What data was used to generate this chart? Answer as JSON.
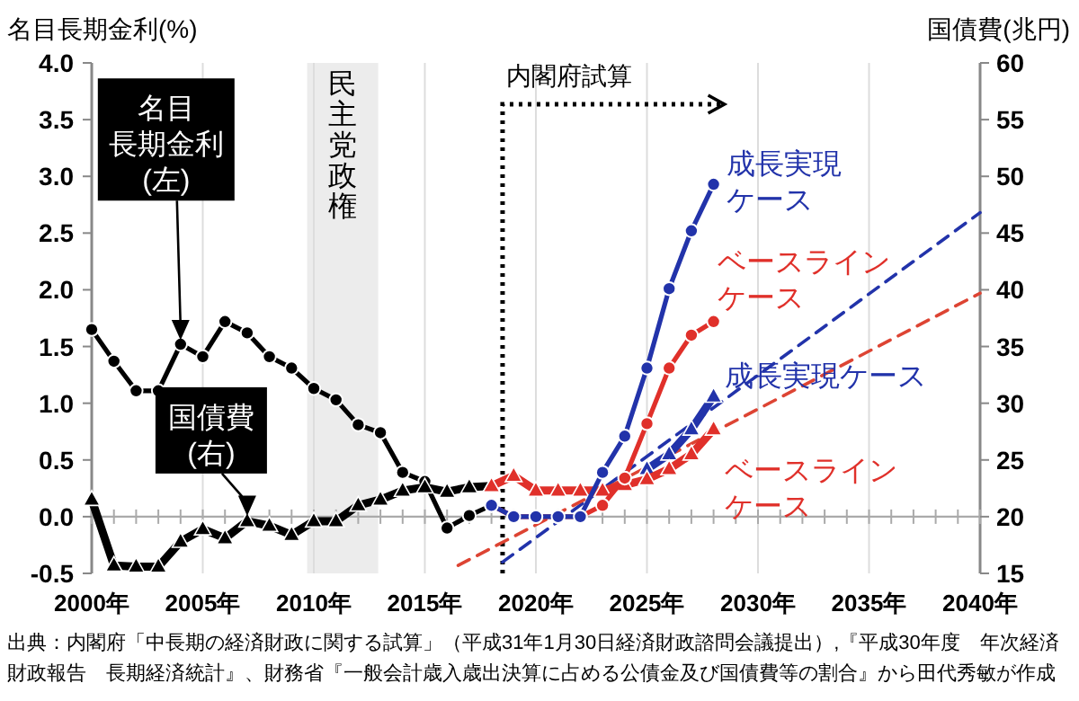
{
  "chart_data": {
    "type": "line",
    "ylabel": "名目長期金利(%)",
    "y2label": "国債費(兆円)",
    "xlim": [
      2000,
      2040
    ],
    "xticks": [
      {
        "value": 2000,
        "label": "2000年"
      },
      {
        "value": 2005,
        "label": "2005年"
      },
      {
        "value": 2010,
        "label": "2010年"
      },
      {
        "value": 2015,
        "label": "2015年"
      },
      {
        "value": 2020,
        "label": "2020年"
      },
      {
        "value": 2025,
        "label": "2025年"
      },
      {
        "value": 2030,
        "label": "2030年"
      },
      {
        "value": 2035,
        "label": "2035年"
      },
      {
        "value": 2040,
        "label": "2040年"
      }
    ],
    "ylim": [
      -0.5,
      4
    ],
    "yticks": [
      {
        "value": -0.5,
        "label": "-0.5"
      },
      {
        "value": 0,
        "label": "0.0"
      },
      {
        "value": 0.5,
        "label": "0.5"
      },
      {
        "value": 1,
        "label": "1.0"
      },
      {
        "value": 1.5,
        "label": "1.5"
      },
      {
        "value": 2,
        "label": "2.0"
      },
      {
        "value": 2.5,
        "label": "2.5"
      },
      {
        "value": 3,
        "label": "3.0"
      },
      {
        "value": 3.5,
        "label": "3.5"
      },
      {
        "value": 4,
        "label": "4.0"
      }
    ],
    "y2lim": [
      15,
      60
    ],
    "y2ticks": [
      15,
      20,
      25,
      30,
      35,
      40,
      45,
      50,
      55,
      60
    ],
    "grid": "x",
    "series": [
      {
        "axis": "y2",
        "color": "#2233aa",
        "marker": "none",
        "line_style": "dashed",
        "x": [
          2018.5,
          2040
        ],
        "values": [
          16.0,
          46.8
        ]
      },
      {
        "axis": "y2",
        "color": "#dd4433",
        "marker": "none",
        "line_style": "dashed",
        "x": [
          2016.5,
          2040
        ],
        "values": [
          15.7,
          39.7
        ]
      },
      {
        "axis": "y",
        "color": "#000000",
        "marker": "circle",
        "line_style": "solid",
        "x": [
          2000,
          2001,
          2002,
          2003,
          2004,
          2005,
          2006,
          2007,
          2008,
          2009,
          2010,
          2011,
          2012,
          2013,
          2014,
          2015,
          2016,
          2017,
          2018
        ],
        "values": [
          1.65,
          1.37,
          1.11,
          1.11,
          1.52,
          1.41,
          1.72,
          1.62,
          1.41,
          1.31,
          1.13,
          1.03,
          0.81,
          0.74,
          0.39,
          0.31,
          -0.1,
          0.01,
          0.1
        ]
      },
      {
        "axis": "y2",
        "color": "#000000",
        "marker": "triangle",
        "line_style": "solid",
        "x": [
          2000,
          2001,
          2002,
          2003,
          2004,
          2005,
          2006,
          2007,
          2008,
          2009,
          2010,
          2011,
          2012,
          2013,
          2014,
          2015,
          2016,
          2017,
          2018
        ],
        "values": [
          21.5,
          15.7,
          15.6,
          15.6,
          17.8,
          18.9,
          18.1,
          19.6,
          19.2,
          18.4,
          19.6,
          19.6,
          21.0,
          21.5,
          22.3,
          22.6,
          22.2,
          22.6,
          22.7
        ]
      },
      {
        "axis": "y2",
        "name": "成長実現ケース",
        "color": "#2233aa",
        "marker": "triangle",
        "line_style": "solid",
        "x": [
          2025,
          2026,
          2027,
          2028
        ],
        "values": [
          24.2,
          25.5,
          27.7,
          30.6
        ]
      },
      {
        "axis": "y2",
        "name": "ベースラインケース",
        "color": "#e0302a",
        "marker": "triangle",
        "line_style": "solid",
        "x": [
          2018,
          2019,
          2020,
          2021,
          2022,
          2023,
          2024,
          2025,
          2026,
          2027,
          2028
        ],
        "values": [
          22.7,
          23.6,
          22.3,
          22.3,
          22.3,
          22.3,
          22.8,
          23.3,
          24.2,
          25.5,
          27.7
        ]
      },
      {
        "axis": "y",
        "name": "ベースラインケース",
        "color": "#e0302a",
        "marker": "circle",
        "line_style": "solid",
        "x": [
          2018,
          2019,
          2020,
          2021,
          2022,
          2023,
          2024,
          2025,
          2026,
          2027,
          2028
        ],
        "values": [
          0.1,
          0.0,
          0.0,
          0.0,
          0.0,
          0.1,
          0.34,
          0.82,
          1.31,
          1.6,
          1.72
        ]
      },
      {
        "axis": "y",
        "name": "成長実現ケース",
        "color": "#2233aa",
        "marker": "circle",
        "line_style": "solid",
        "x": [
          2018,
          2019,
          2020,
          2021,
          2022,
          2023,
          2024,
          2025,
          2026,
          2027,
          2028
        ],
        "values": [
          0.1,
          0.0,
          0.0,
          0.0,
          0.0,
          0.39,
          0.71,
          1.31,
          2.01,
          2.52,
          2.93
        ]
      }
    ],
    "bands": [
      {
        "axis": "x",
        "from": 2009.7,
        "to": 2012.9,
        "label": "民主党政権",
        "color": "#ececec"
      }
    ],
    "ref_lines": [
      {
        "axis": "x",
        "value": 2018.5,
        "line_style": "dotted",
        "color": "#000000",
        "label": "内閣府試算"
      }
    ],
    "annotations": [
      {
        "text": "名目長期金利(左)",
        "x": 2004,
        "y": 1.55
      },
      {
        "text": "国債費(右)",
        "x": 2007,
        "y": 0.0
      },
      "出典：内閣府「中長期の経済財政に関する試算」（平成31年1月30日経済財政諮問会議提出）,『平成30年度　年次経済財政報告　長期経済統計』、財務省『一般会計歳入歳出決算に占める公債金及び国債費等の割合』から田代秀敏が作成。"
    ]
  }
}
